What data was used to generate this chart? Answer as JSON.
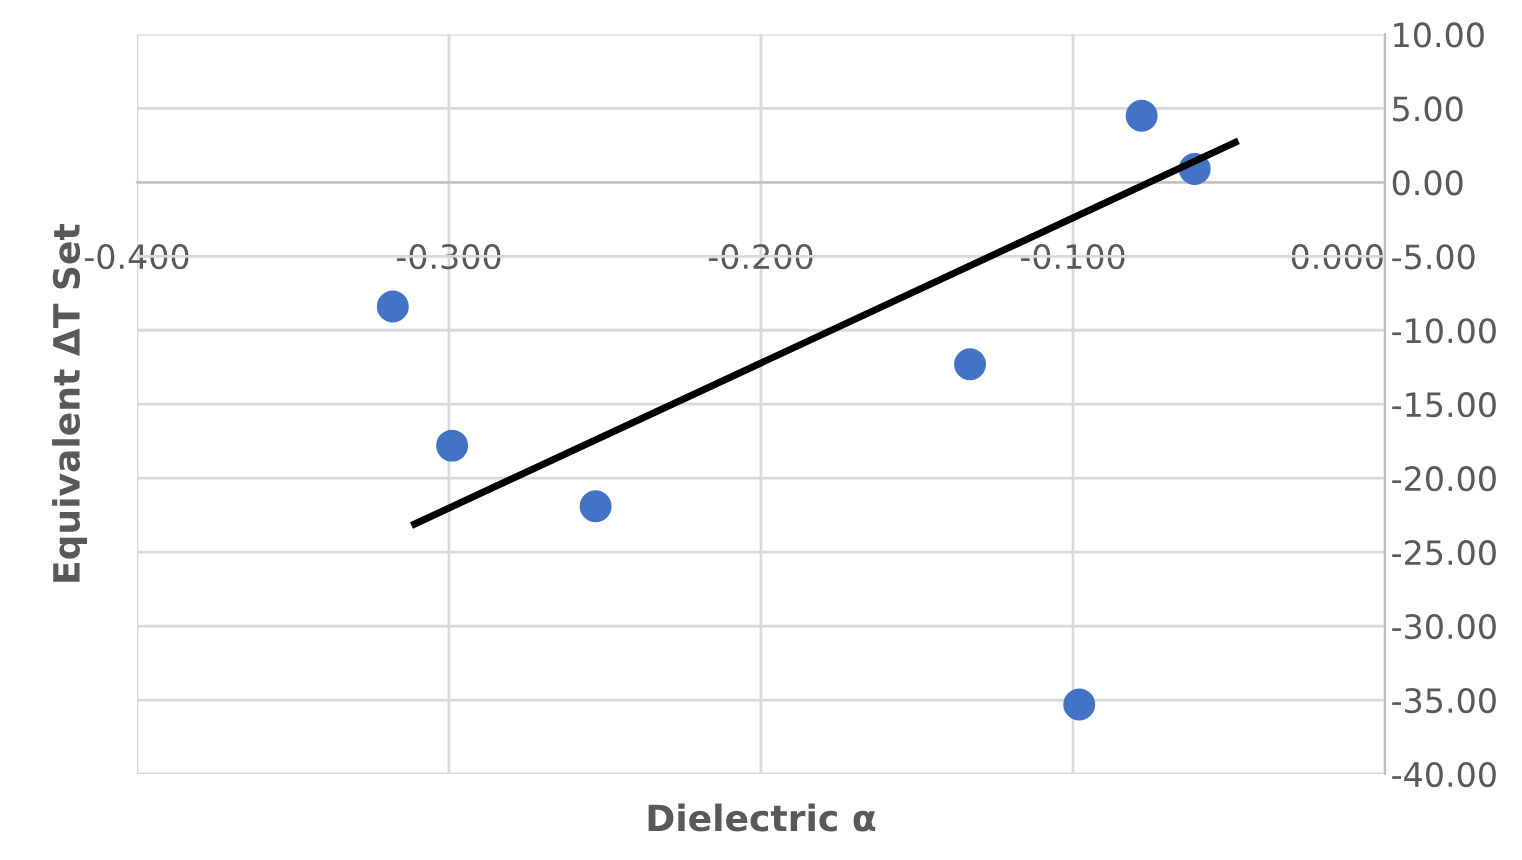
{
  "chart_data": {
    "type": "scatter",
    "xlabel": "Dielectric α",
    "ylabel": "Equivalent ΔT Set",
    "xlim": [
      -0.4,
      0.0
    ],
    "ylim": [
      -40,
      10
    ],
    "xticks": [
      {
        "value": -0.4,
        "label": "-0.400"
      },
      {
        "value": -0.3,
        "label": "-0.300"
      },
      {
        "value": -0.2,
        "label": "-0.200"
      },
      {
        "value": -0.1,
        "label": "-0.100"
      },
      {
        "value": 0.0,
        "label": "0.000"
      }
    ],
    "yticks": [
      {
        "value": 10,
        "label": "10.00"
      },
      {
        "value": 5,
        "label": "5.00"
      },
      {
        "value": 0,
        "label": "0.00"
      },
      {
        "value": -5,
        "label": "-5.00"
      },
      {
        "value": -10,
        "label": "-10.00"
      },
      {
        "value": -15,
        "label": "-15.00"
      },
      {
        "value": -20,
        "label": "-20.00"
      },
      {
        "value": -25,
        "label": "-25.00"
      },
      {
        "value": -30,
        "label": "-30.00"
      },
      {
        "value": -35,
        "label": "-35.00"
      },
      {
        "value": -40,
        "label": "-40.00"
      }
    ],
    "grid": true,
    "marker": "circle",
    "series": [
      {
        "type": "scatter",
        "color": "#4472c4",
        "x": [
          -0.318,
          -0.299,
          -0.253,
          -0.133,
          -0.098,
          -0.078,
          -0.061
        ],
        "values": [
          -8.4,
          -17.8,
          -21.9,
          -12.3,
          -35.3,
          4.5,
          0.9
        ]
      },
      {
        "type": "line",
        "marker": "none",
        "color": "#000000",
        "x": [
          -0.311,
          -0.048
        ],
        "values": [
          -23.1,
          2.7
        ]
      }
    ]
  }
}
